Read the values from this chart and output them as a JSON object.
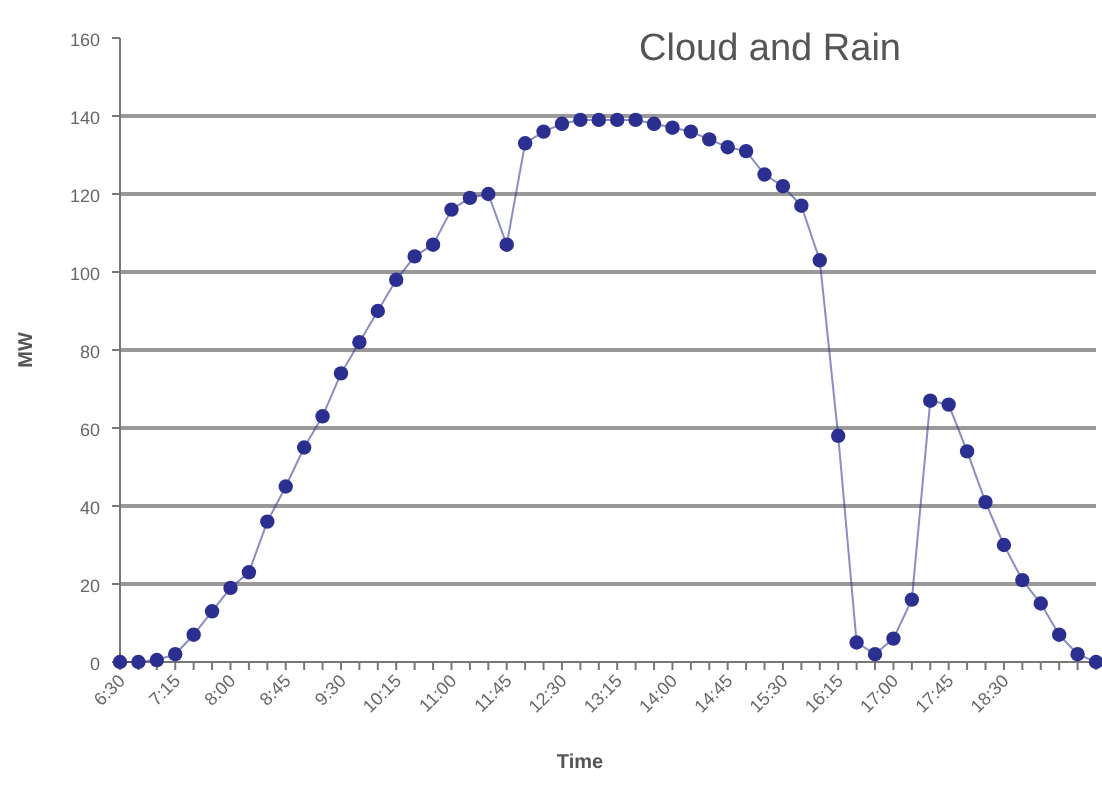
{
  "chart_data": {
    "type": "line",
    "title": "Cloud and Rain",
    "xlabel": "Time",
    "ylabel": "MW",
    "categories": [
      "6:30",
      null,
      null,
      "7:15",
      null,
      null,
      "8:00",
      null,
      null,
      "8:45",
      null,
      null,
      "9:30",
      null,
      null,
      "10:15",
      null,
      null,
      "11:00",
      null,
      null,
      "11:45",
      null,
      null,
      "12:30",
      null,
      null,
      "13:15",
      null,
      null,
      "14:00",
      null,
      null,
      "14:45",
      null,
      null,
      "15:30",
      null,
      null,
      "16:15",
      null,
      null,
      "17:00",
      null,
      null,
      "17:45",
      null,
      null,
      "18:30",
      null,
      null,
      null,
      null,
      null
    ],
    "series": [
      {
        "color": "#2b2f8f",
        "values": [
          0,
          0,
          0.5,
          2,
          7,
          13,
          19,
          23,
          36,
          45,
          55,
          63,
          74,
          82,
          90,
          98,
          104,
          107,
          116,
          119,
          120,
          107,
          133,
          136,
          138,
          139,
          139,
          139,
          139,
          138,
          137,
          136,
          134,
          132,
          131,
          125,
          122,
          117,
          103,
          58,
          5,
          2,
          6,
          16,
          67,
          66,
          54,
          41,
          30,
          21,
          15,
          7,
          2,
          0
        ]
      }
    ],
    "ylim": [
      0,
      160
    ],
    "yticks": [
      0,
      20,
      40,
      60,
      80,
      100,
      120,
      140,
      160
    ],
    "grid": "y",
    "marker": "circle",
    "line_style": "solid"
  }
}
